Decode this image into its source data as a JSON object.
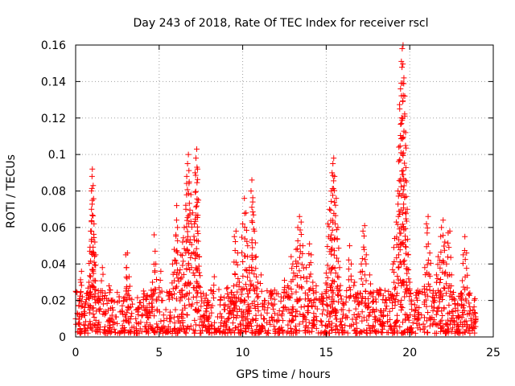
{
  "chart_data": {
    "type": "scatter",
    "title": "Day 243 of 2018, Rate Of TEC Index for receiver rscl",
    "xlabel": "GPS time / hours",
    "ylabel": "ROTI / TECUs",
    "xlim": [
      0,
      25
    ],
    "ylim": [
      0,
      0.16
    ],
    "xticks": [
      0,
      5,
      10,
      15,
      20,
      25
    ],
    "xtick_labels": [
      "0",
      "5",
      "10",
      "15",
      "20",
      "25"
    ],
    "yticks": [
      0,
      0.02,
      0.04,
      0.06,
      0.08,
      0.1,
      0.12,
      0.14,
      0.16
    ],
    "ytick_labels": [
      "0",
      "0.02",
      "0.04",
      "0.06",
      "0.08",
      "0.1",
      "0.12",
      "0.14",
      "0.16"
    ],
    "grid": true,
    "marker": "+",
    "color": "#ff0000",
    "series": [
      {
        "name": "ROTI",
        "points": [
          [
            0.0,
            0.01
          ],
          [
            0.1,
            0.013
          ],
          [
            0.2,
            0.017
          ],
          [
            0.3,
            0.03
          ],
          [
            0.35,
            0.036
          ],
          [
            0.4,
            0.022
          ],
          [
            0.5,
            0.014
          ],
          [
            0.6,
            0.019
          ],
          [
            0.7,
            0.024
          ],
          [
            0.8,
            0.03
          ],
          [
            0.85,
            0.047
          ],
          [
            0.9,
            0.058
          ],
          [
            0.95,
            0.07
          ],
          [
            0.98,
            0.088
          ],
          [
            1.0,
            0.092
          ],
          [
            1.05,
            0.083
          ],
          [
            1.1,
            0.062
          ],
          [
            1.15,
            0.052
          ],
          [
            1.2,
            0.045
          ],
          [
            1.3,
            0.02
          ],
          [
            1.4,
            0.015
          ],
          [
            1.6,
            0.038
          ],
          [
            1.8,
            0.013
          ],
          [
            2.0,
            0.028
          ],
          [
            2.2,
            0.016
          ],
          [
            2.4,
            0.011
          ],
          [
            2.6,
            0.022
          ],
          [
            2.8,
            0.014
          ],
          [
            3.0,
            0.045
          ],
          [
            3.1,
            0.046
          ],
          [
            3.2,
            0.033
          ],
          [
            3.4,
            0.018
          ],
          [
            3.6,
            0.01
          ],
          [
            3.8,
            0.016
          ],
          [
            4.0,
            0.012
          ],
          [
            4.2,
            0.021
          ],
          [
            4.4,
            0.014
          ],
          [
            4.6,
            0.03
          ],
          [
            4.7,
            0.056
          ],
          [
            4.8,
            0.04
          ],
          [
            5.0,
            0.027
          ],
          [
            5.1,
            0.036
          ],
          [
            5.2,
            0.02
          ],
          [
            5.4,
            0.015
          ],
          [
            5.6,
            0.024
          ],
          [
            5.8,
            0.04
          ],
          [
            5.9,
            0.048
          ],
          [
            6.0,
            0.056
          ],
          [
            6.05,
            0.072
          ],
          [
            6.1,
            0.06
          ],
          [
            6.2,
            0.035
          ],
          [
            6.3,
            0.045
          ],
          [
            6.4,
            0.052
          ],
          [
            6.5,
            0.06
          ],
          [
            6.6,
            0.07
          ],
          [
            6.65,
            0.088
          ],
          [
            6.7,
            0.095
          ],
          [
            6.75,
            0.1
          ],
          [
            6.8,
            0.085
          ],
          [
            6.9,
            0.078
          ],
          [
            7.0,
            0.068
          ],
          [
            7.1,
            0.062
          ],
          [
            7.15,
            0.09
          ],
          [
            7.2,
            0.098
          ],
          [
            7.25,
            0.103
          ],
          [
            7.3,
            0.092
          ],
          [
            7.35,
            0.075
          ],
          [
            7.4,
            0.044
          ],
          [
            7.5,
            0.024
          ],
          [
            7.7,
            0.012
          ],
          [
            7.9,
            0.02
          ],
          [
            8.1,
            0.016
          ],
          [
            8.3,
            0.033
          ],
          [
            8.5,
            0.011
          ],
          [
            8.7,
            0.022
          ],
          [
            8.9,
            0.015
          ],
          [
            9.1,
            0.027
          ],
          [
            9.3,
            0.018
          ],
          [
            9.5,
            0.055
          ],
          [
            9.6,
            0.058
          ],
          [
            9.7,
            0.046
          ],
          [
            9.8,
            0.03
          ],
          [
            10.0,
            0.062
          ],
          [
            10.1,
            0.076
          ],
          [
            10.2,
            0.068
          ],
          [
            10.3,
            0.05
          ],
          [
            10.4,
            0.038
          ],
          [
            10.5,
            0.08
          ],
          [
            10.55,
            0.086
          ],
          [
            10.6,
            0.074
          ],
          [
            10.7,
            0.058
          ],
          [
            10.8,
            0.044
          ],
          [
            10.9,
            0.03
          ],
          [
            11.1,
            0.034
          ],
          [
            11.3,
            0.02
          ],
          [
            11.5,
            0.016
          ],
          [
            11.7,
            0.025
          ],
          [
            11.9,
            0.018
          ],
          [
            12.1,
            0.012
          ],
          [
            12.3,
            0.022
          ],
          [
            12.5,
            0.031
          ],
          [
            12.7,
            0.028
          ],
          [
            12.9,
            0.044
          ],
          [
            13.0,
            0.04
          ],
          [
            13.2,
            0.048
          ],
          [
            13.3,
            0.06
          ],
          [
            13.4,
            0.066
          ],
          [
            13.5,
            0.063
          ],
          [
            13.6,
            0.05
          ],
          [
            13.8,
            0.038
          ],
          [
            14.0,
            0.051
          ],
          [
            14.1,
            0.045
          ],
          [
            14.2,
            0.03
          ],
          [
            14.4,
            0.028
          ],
          [
            14.6,
            0.02
          ],
          [
            14.8,
            0.018
          ],
          [
            15.0,
            0.035
          ],
          [
            15.1,
            0.062
          ],
          [
            15.2,
            0.07
          ],
          [
            15.3,
            0.08
          ],
          [
            15.35,
            0.09
          ],
          [
            15.4,
            0.095
          ],
          [
            15.45,
            0.098
          ],
          [
            15.5,
            0.088
          ],
          [
            15.6,
            0.076
          ],
          [
            15.7,
            0.06
          ],
          [
            15.8,
            0.038
          ],
          [
            16.0,
            0.015
          ],
          [
            16.2,
            0.022
          ],
          [
            16.4,
            0.05
          ],
          [
            16.5,
            0.04
          ],
          [
            16.7,
            0.03
          ],
          [
            16.9,
            0.024
          ],
          [
            17.1,
            0.04
          ],
          [
            17.2,
            0.058
          ],
          [
            17.3,
            0.061
          ],
          [
            17.4,
            0.045
          ],
          [
            17.6,
            0.034
          ],
          [
            17.8,
            0.022
          ],
          [
            18.0,
            0.015
          ],
          [
            18.2,
            0.026
          ],
          [
            18.4,
            0.012
          ],
          [
            18.6,
            0.02
          ],
          [
            18.8,
            0.014
          ],
          [
            19.0,
            0.04
          ],
          [
            19.1,
            0.054
          ],
          [
            19.2,
            0.063
          ],
          [
            19.3,
            0.08
          ],
          [
            19.35,
            0.104
          ],
          [
            19.4,
            0.125
          ],
          [
            19.45,
            0.136
          ],
          [
            19.5,
            0.151
          ],
          [
            19.55,
            0.158
          ],
          [
            19.6,
            0.16
          ],
          [
            19.65,
            0.142
          ],
          [
            19.7,
            0.132
          ],
          [
            19.75,
            0.112
          ],
          [
            19.8,
            0.085
          ],
          [
            19.85,
            0.07
          ],
          [
            19.9,
            0.045
          ],
          [
            20.0,
            0.03
          ],
          [
            20.1,
            0.018
          ],
          [
            20.3,
            0.01
          ],
          [
            20.5,
            0.024
          ],
          [
            20.7,
            0.012
          ],
          [
            20.9,
            0.038
          ],
          [
            21.0,
            0.062
          ],
          [
            21.1,
            0.066
          ],
          [
            21.2,
            0.046
          ],
          [
            21.4,
            0.024
          ],
          [
            21.6,
            0.034
          ],
          [
            21.7,
            0.044
          ],
          [
            21.8,
            0.042
          ],
          [
            21.9,
            0.06
          ],
          [
            22.0,
            0.064
          ],
          [
            22.1,
            0.052
          ],
          [
            22.2,
            0.04
          ],
          [
            22.3,
            0.057
          ],
          [
            22.4,
            0.058
          ],
          [
            22.5,
            0.034
          ],
          [
            22.7,
            0.018
          ],
          [
            22.9,
            0.011
          ],
          [
            23.1,
            0.024
          ],
          [
            23.2,
            0.045
          ],
          [
            23.3,
            0.055
          ],
          [
            23.4,
            0.046
          ],
          [
            23.6,
            0.024
          ],
          [
            23.8,
            0.012
          ],
          [
            23.9,
            0.008
          ],
          [
            23.95,
            0.01
          ]
        ]
      }
    ],
    "noise_band": {
      "description": "dense cloud of low ROTI measurements across the day",
      "x_range": [
        0,
        23.95
      ],
      "y_range": [
        0.002,
        0.026
      ],
      "count": 1300,
      "seed": 243
    }
  }
}
